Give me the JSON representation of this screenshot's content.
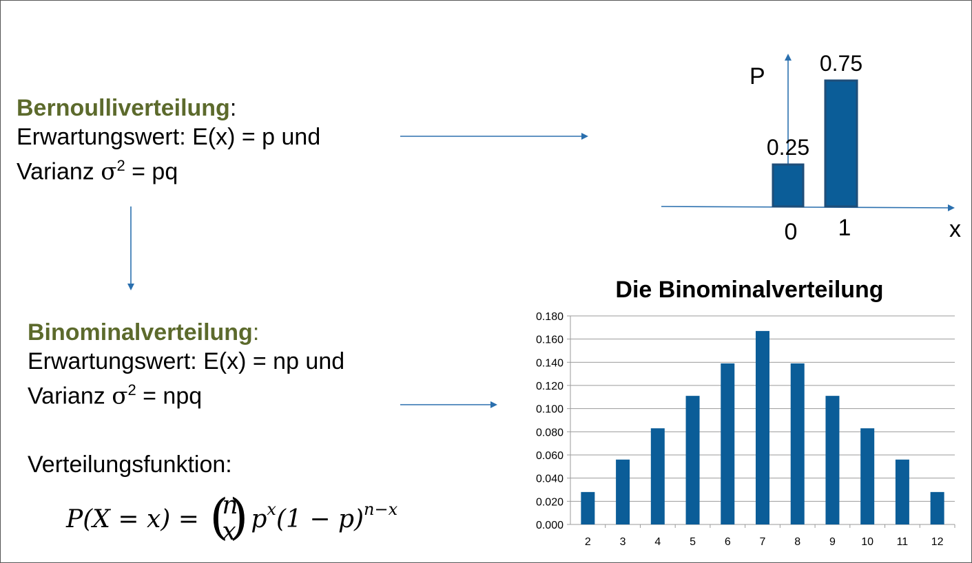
{
  "bernoulli": {
    "heading": "Bernoulliverteilung",
    "colon": ":",
    "line1": "Erwartungswert: E(x) = p und",
    "line2_prefix": "Varianz ",
    "line2_sigma": "σ",
    "line2_exp": "2",
    "line2_suffix": " = pq"
  },
  "binomial": {
    "heading": "Binominalverteilung",
    "colon": ":",
    "line1": "Erwartungswert: E(x) = np und",
    "line2_prefix": "Varianz ",
    "line2_sigma": "σ",
    "line2_exp": "2",
    "line2_suffix": " = npq",
    "cdf_label": "Verteilungsfunktion:"
  },
  "formula": {
    "lhs": "P(X = x) = ",
    "n": "n",
    "x": "x",
    "p": "p",
    "p_exp": "x",
    "rest": "(1 − p)",
    "rest_exp": "n−x"
  },
  "colors": {
    "heading": "#5c6a2c",
    "bar_fill": "#0b5d98",
    "bar_stroke": "#1f4e79",
    "arrow": "#2a6fae",
    "grid": "#9a9a9a"
  },
  "chart_data": [
    {
      "type": "bar",
      "title": "",
      "xlabel": "x",
      "ylabel": "P",
      "categories": [
        "0",
        "1"
      ],
      "values": [
        0.25,
        0.75
      ],
      "value_labels": [
        "0.25",
        "0.75"
      ]
    },
    {
      "type": "bar",
      "title": "Die Binominalverteilung",
      "xlabel": "",
      "ylabel": "",
      "categories": [
        "2",
        "3",
        "4",
        "5",
        "6",
        "7",
        "8",
        "9",
        "10",
        "11",
        "12"
      ],
      "values": [
        0.028,
        0.056,
        0.083,
        0.111,
        0.139,
        0.167,
        0.139,
        0.111,
        0.083,
        0.056,
        0.028
      ],
      "ylim": [
        0,
        0.18
      ],
      "yticks": [
        "0.000",
        "0.020",
        "0.040",
        "0.060",
        "0.080",
        "0.100",
        "0.120",
        "0.140",
        "0.160",
        "0.180"
      ],
      "grid": true,
      "legend": "none"
    }
  ]
}
